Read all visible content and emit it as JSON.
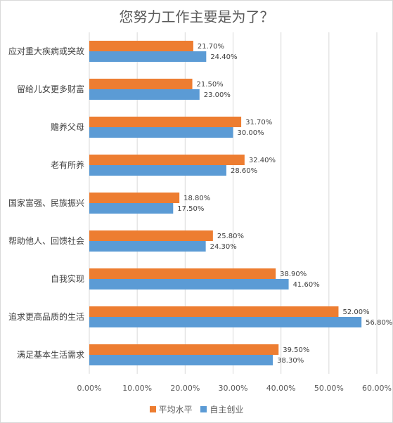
{
  "chart_data": {
    "type": "bar",
    "orientation": "horizontal",
    "title": "您努力工作主要是为了？",
    "categories": [
      "应对重大疾病或突故",
      "留给儿女更多财富",
      "赡养父母",
      "老有所养",
      "国家富强、民族振兴",
      "帮助他人、回馈社会",
      "自我实现",
      "追求更高品质的生活",
      "满足基本生活需求"
    ],
    "series": [
      {
        "name": "平均水平",
        "color": "#ED7D31",
        "values": [
          21.7,
          21.5,
          31.7,
          32.4,
          18.8,
          25.8,
          38.9,
          52.0,
          39.5
        ],
        "labels": [
          "21.70%",
          "21.50%",
          "31.70%",
          "32.40%",
          "18.80%",
          "25.80%",
          "38.90%",
          "52.00%",
          "39.50%"
        ]
      },
      {
        "name": "自主创业",
        "color": "#5B9BD5",
        "values": [
          24.4,
          23.0,
          30.0,
          28.6,
          17.5,
          24.3,
          41.6,
          56.8,
          38.3
        ],
        "labels": [
          "24.40%",
          "23.00%",
          "30.00%",
          "28.60%",
          "17.50%",
          "24.30%",
          "41.60%",
          "56.80%",
          "38.30%"
        ]
      }
    ],
    "xlim": [
      0,
      60
    ],
    "xticks": [
      "0.00%",
      "10.00%",
      "20.00%",
      "30.00%",
      "40.00%",
      "50.00%",
      "60.00%"
    ],
    "grid": true,
    "legend_position": "bottom"
  }
}
